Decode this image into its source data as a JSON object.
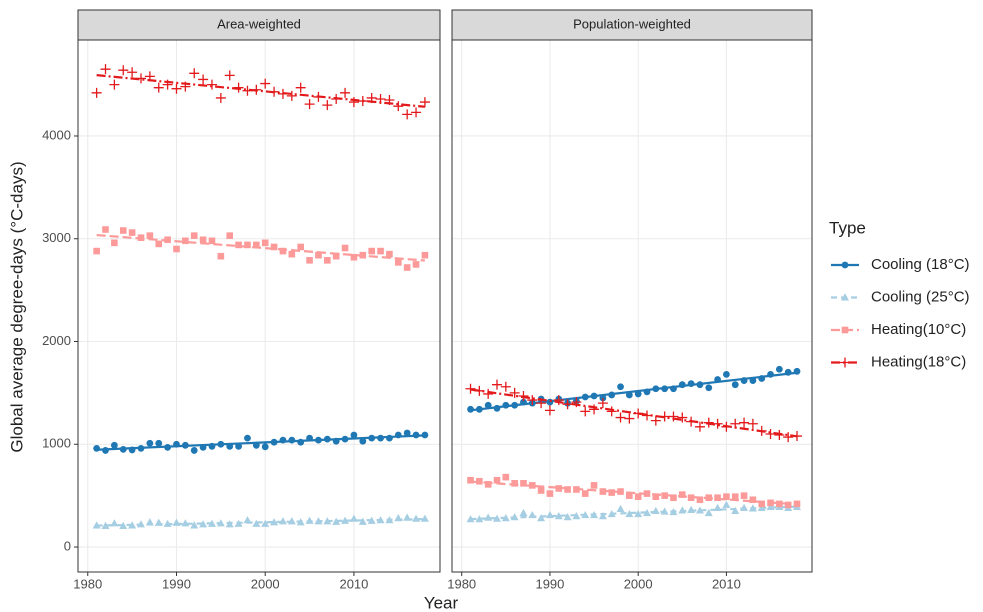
{
  "chart_data": {
    "type": "scatter",
    "y_label": "Global average degree-days (°C-days)",
    "x_label": "Year",
    "legend_title": "Type",
    "x": [
      1981,
      1982,
      1983,
      1984,
      1985,
      1986,
      1987,
      1988,
      1989,
      1990,
      1991,
      1992,
      1993,
      1994,
      1995,
      1996,
      1997,
      1998,
      1999,
      2000,
      2001,
      2002,
      2003,
      2004,
      2005,
      2006,
      2007,
      2008,
      2009,
      2010,
      2011,
      2012,
      2013,
      2014,
      2015,
      2016,
      2017,
      2018
    ],
    "xlim": [
      1978.9,
      2019.7
    ],
    "xticks": [
      1980,
      1990,
      2000,
      2010
    ],
    "ylim": [
      -243,
      4934
    ],
    "yticks": [
      0,
      1000,
      2000,
      3000,
      4000
    ],
    "grid": true,
    "trend_lines": true,
    "series": [
      {
        "name": "Cooling (18°C)",
        "color": "#1f78b4",
        "marker": "circle",
        "dash": "none"
      },
      {
        "name": "Cooling (25°C)",
        "color": "#a6cee3",
        "marker": "triangle",
        "dash": "6 4"
      },
      {
        "name": "Heating(10°C)",
        "color": "#fb9a99",
        "marker": "square",
        "dash": "9 4"
      },
      {
        "name": "Heating(18°C)",
        "color": "#e31a1c",
        "marker": "plus",
        "dash": "9 3 2 3"
      }
    ],
    "facets": [
      {
        "title": "Area-weighted",
        "values": [
          [
            960,
            940,
            990,
            950,
            945,
            960,
            1010,
            1010,
            970,
            1000,
            990,
            940,
            970,
            980,
            1000,
            980,
            980,
            1060,
            990,
            975,
            1020,
            1040,
            1040,
            1020,
            1060,
            1040,
            1050,
            1030,
            1050,
            1090,
            1030,
            1060,
            1060,
            1060,
            1090,
            1110,
            1090,
            1090
          ],
          [
            210,
            205,
            230,
            205,
            210,
            220,
            240,
            235,
            225,
            235,
            230,
            210,
            220,
            225,
            230,
            220,
            225,
            260,
            225,
            225,
            240,
            250,
            250,
            240,
            255,
            250,
            250,
            245,
            255,
            275,
            245,
            255,
            260,
            260,
            280,
            285,
            275,
            275
          ],
          [
            2880,
            3090,
            2960,
            3080,
            3060,
            3010,
            3030,
            2950,
            2990,
            2900,
            2980,
            3030,
            2990,
            2980,
            2830,
            3030,
            2940,
            2940,
            2940,
            2960,
            2920,
            2880,
            2850,
            2920,
            2790,
            2840,
            2790,
            2830,
            2910,
            2820,
            2840,
            2880,
            2880,
            2850,
            2770,
            2720,
            2750,
            2840
          ],
          [
            4420,
            4650,
            4500,
            4640,
            4620,
            4560,
            4580,
            4470,
            4500,
            4460,
            4480,
            4610,
            4550,
            4500,
            4370,
            4590,
            4470,
            4440,
            4450,
            4510,
            4430,
            4410,
            4390,
            4470,
            4310,
            4380,
            4300,
            4360,
            4420,
            4330,
            4340,
            4370,
            4360,
            4350,
            4290,
            4210,
            4230,
            4330
          ]
        ]
      },
      {
        "title": "Population-weighted",
        "values": [
          [
            1340,
            1340,
            1380,
            1350,
            1380,
            1380,
            1410,
            1400,
            1440,
            1410,
            1440,
            1400,
            1420,
            1460,
            1470,
            1450,
            1480,
            1560,
            1480,
            1490,
            1510,
            1540,
            1540,
            1540,
            1580,
            1590,
            1580,
            1550,
            1630,
            1680,
            1580,
            1620,
            1620,
            1640,
            1680,
            1730,
            1700,
            1710
          ],
          [
            270,
            270,
            285,
            275,
            280,
            290,
            330,
            310,
            280,
            310,
            300,
            290,
            300,
            310,
            310,
            300,
            320,
            370,
            320,
            320,
            330,
            350,
            345,
            340,
            355,
            360,
            355,
            330,
            380,
            410,
            350,
            380,
            375,
            380,
            390,
            390,
            380,
            390
          ],
          [
            650,
            640,
            610,
            650,
            680,
            620,
            620,
            600,
            550,
            520,
            570,
            560,
            560,
            520,
            600,
            540,
            530,
            540,
            500,
            490,
            520,
            490,
            500,
            480,
            510,
            480,
            460,
            480,
            480,
            490,
            490,
            500,
            460,
            420,
            430,
            420,
            410,
            420
          ],
          [
            1540,
            1520,
            1490,
            1580,
            1560,
            1500,
            1470,
            1430,
            1400,
            1330,
            1430,
            1390,
            1410,
            1320,
            1340,
            1400,
            1320,
            1260,
            1250,
            1300,
            1280,
            1230,
            1270,
            1270,
            1260,
            1220,
            1170,
            1210,
            1200,
            1170,
            1200,
            1210,
            1200,
            1130,
            1100,
            1090,
            1070,
            1080
          ]
        ]
      }
    ]
  }
}
